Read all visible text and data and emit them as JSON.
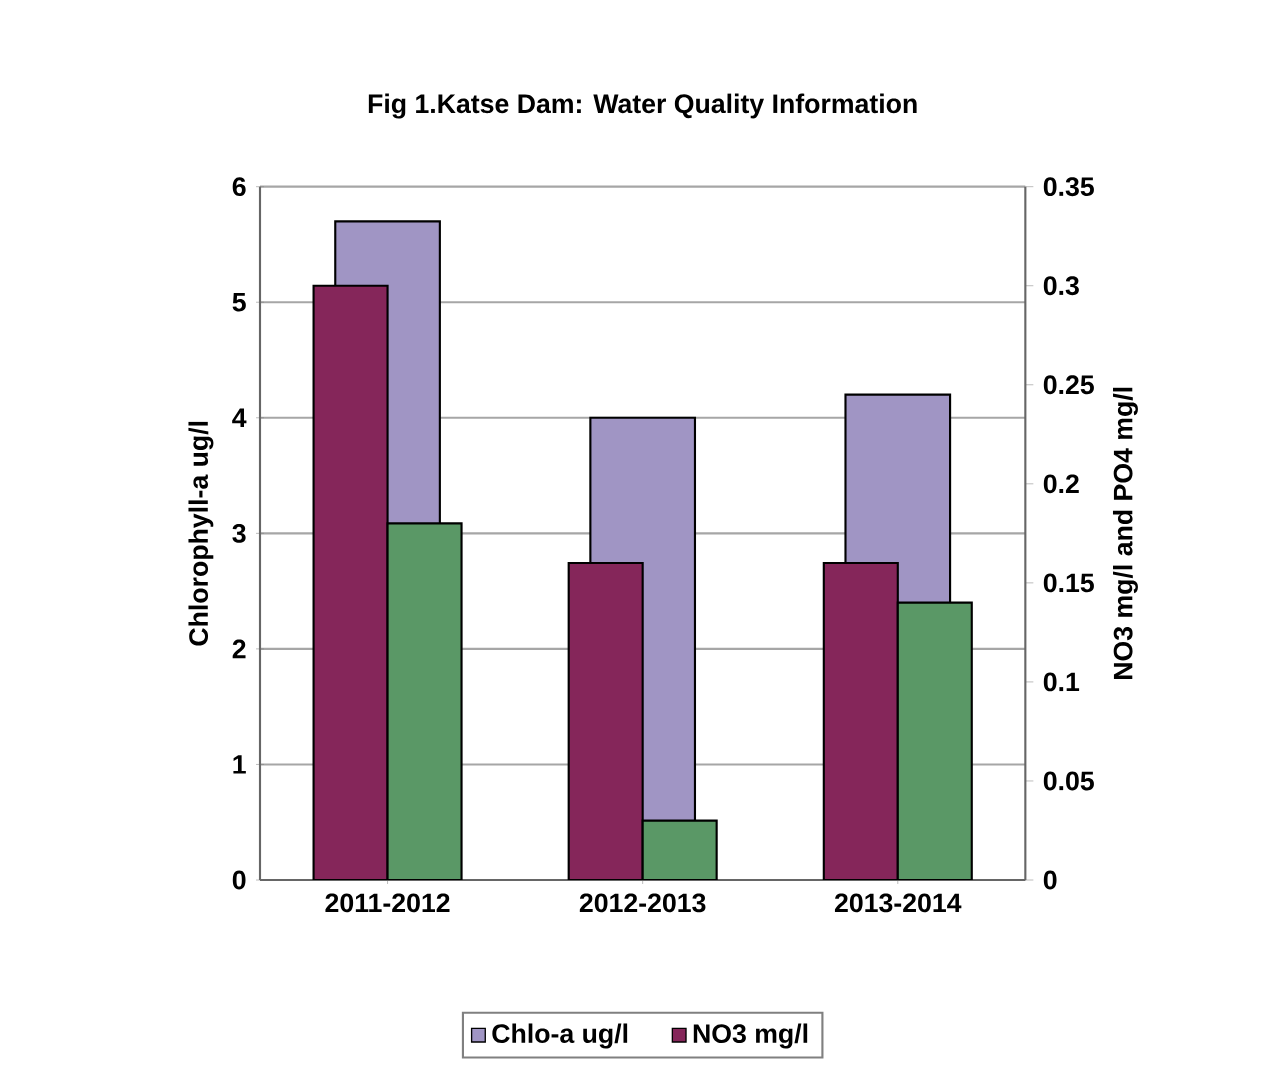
{
  "chart_data": {
    "type": "bar",
    "title": "Fig 1.Katse Dam: Water Quality Information",
    "categories": [
      "2011-2012",
      "2012-2013",
      "2013-2014"
    ],
    "series": [
      {
        "name": "Chlo-a ug/l",
        "color": "#a095c4",
        "values": [
          5.7,
          4.0,
          4.2
        ]
      },
      {
        "name": "NO3 mg/l",
        "color": "#85265a",
        "values": [
          0.3,
          0.16,
          0.16
        ],
        "axis": "y2"
      },
      {
        "color": "#5a9866",
        "values": [
          0.18,
          0.03,
          0.14
        ],
        "axis": "y2"
      }
    ],
    "ylabel": "Chlorophyll-a ug/l",
    "y2label": "NO3 mg/l and PO4 mg/l",
    "ylim": [
      0,
      6
    ],
    "yticks": [
      0,
      1,
      2,
      3,
      4,
      5,
      6
    ],
    "y2lim": [
      0,
      0.35
    ],
    "y2ticks": [
      0,
      0.05,
      0.1,
      0.15,
      0.2,
      0.25,
      0.3,
      0.35
    ],
    "grid": "y",
    "legend": "bottom"
  }
}
